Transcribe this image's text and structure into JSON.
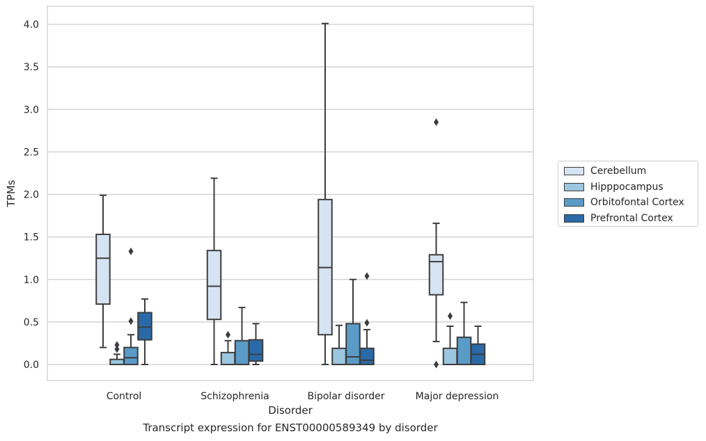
{
  "chart_data": {
    "type": "box",
    "title": "",
    "caption": "Transcript expression for ENST00000589349 by disorder",
    "xlabel": "Disorder",
    "ylabel": "TPMs",
    "ylim": [
      -0.2,
      4.22
    ],
    "yticks": [
      "0.0",
      "0.5",
      "1.0",
      "1.5",
      "2.0",
      "2.5",
      "3.0",
      "3.5",
      "4.0"
    ],
    "grid": true,
    "legend_position": "right",
    "categories": [
      "Control",
      "Schizophrenia",
      "Bipolar disorder",
      "Major depression"
    ],
    "series": [
      {
        "name": "Cerebellum",
        "color": "#d5e3f2",
        "boxes": [
          {
            "whislo": 0.2,
            "q1": 0.71,
            "med": 1.25,
            "q3": 1.53,
            "whishi": 1.99,
            "fliers": []
          },
          {
            "whislo": 0.0,
            "q1": 0.53,
            "med": 0.92,
            "q3": 1.34,
            "whishi": 2.19,
            "fliers": []
          },
          {
            "whislo": 0.0,
            "q1": 0.35,
            "med": 1.14,
            "q3": 1.94,
            "whishi": 4.01,
            "fliers": []
          },
          {
            "whislo": 0.27,
            "q1": 0.82,
            "med": 1.21,
            "q3": 1.29,
            "whishi": 1.66,
            "fliers": [
              2.85,
              0.0
            ]
          }
        ]
      },
      {
        "name": "Hipppocampus",
        "color": "#9ac6e0",
        "boxes": [
          {
            "whislo": 0.0,
            "q1": 0.0,
            "med": 0.0,
            "q3": 0.06,
            "whishi": 0.12,
            "fliers": [
              0.18,
              0.23
            ]
          },
          {
            "whislo": 0.0,
            "q1": 0.0,
            "med": 0.0,
            "q3": 0.14,
            "whishi": 0.28,
            "fliers": [
              0.35
            ]
          },
          {
            "whislo": 0.0,
            "q1": 0.0,
            "med": 0.0,
            "q3": 0.19,
            "whishi": 0.46,
            "fliers": []
          },
          {
            "whislo": 0.0,
            "q1": 0.0,
            "med": 0.0,
            "q3": 0.19,
            "whishi": 0.45,
            "fliers": [
              0.57
            ]
          }
        ]
      },
      {
        "name": "Orbitofontal Cortex",
        "color": "#5a9bc8",
        "boxes": [
          {
            "whislo": 0.0,
            "q1": 0.0,
            "med": 0.08,
            "q3": 0.2,
            "whishi": 0.35,
            "fliers": [
              0.51,
              1.33
            ]
          },
          {
            "whislo": 0.0,
            "q1": 0.0,
            "med": 0.0,
            "q3": 0.28,
            "whishi": 0.67,
            "fliers": []
          },
          {
            "whislo": 0.0,
            "q1": 0.0,
            "med": 0.09,
            "q3": 0.48,
            "whishi": 1.0,
            "fliers": []
          },
          {
            "whislo": 0.0,
            "q1": 0.0,
            "med": 0.0,
            "q3": 0.32,
            "whishi": 0.73,
            "fliers": []
          }
        ]
      },
      {
        "name": "Prefrontal Cortex",
        "color": "#2a6aa8",
        "boxes": [
          {
            "whislo": 0.0,
            "q1": 0.29,
            "med": 0.44,
            "q3": 0.61,
            "whishi": 0.77,
            "fliers": []
          },
          {
            "whislo": 0.0,
            "q1": 0.04,
            "med": 0.12,
            "q3": 0.29,
            "whishi": 0.48,
            "fliers": []
          },
          {
            "whislo": 0.0,
            "q1": 0.0,
            "med": 0.05,
            "q3": 0.19,
            "whishi": 0.41,
            "fliers": [
              0.49,
              1.04
            ]
          },
          {
            "whislo": 0.0,
            "q1": 0.0,
            "med": 0.12,
            "q3": 0.24,
            "whishi": 0.45,
            "fliers": []
          }
        ]
      }
    ]
  }
}
